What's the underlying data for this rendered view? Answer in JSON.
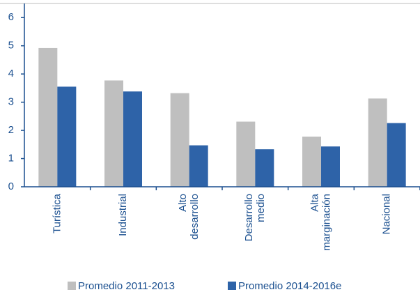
{
  "chart_data": {
    "type": "bar",
    "categories": [
      "Turística",
      "Industrial",
      "Alto desarrollo",
      "Desarrollo medio",
      "Alta marginación",
      "Nacional"
    ],
    "series": [
      {
        "name": "Promedio 2011-2013",
        "color": "#bfbfbf",
        "values": [
          4.92,
          3.77,
          3.32,
          2.31,
          1.78,
          3.13
        ]
      },
      {
        "name": "Promedio 2014-2016e",
        "color": "#2e63a8",
        "values": [
          3.55,
          3.38,
          1.47,
          1.33,
          1.43,
          2.26
        ]
      }
    ],
    "ylim": [
      0,
      6.5
    ],
    "yticks": [
      0,
      1,
      2,
      3,
      4,
      5,
      6
    ],
    "grid": false
  }
}
